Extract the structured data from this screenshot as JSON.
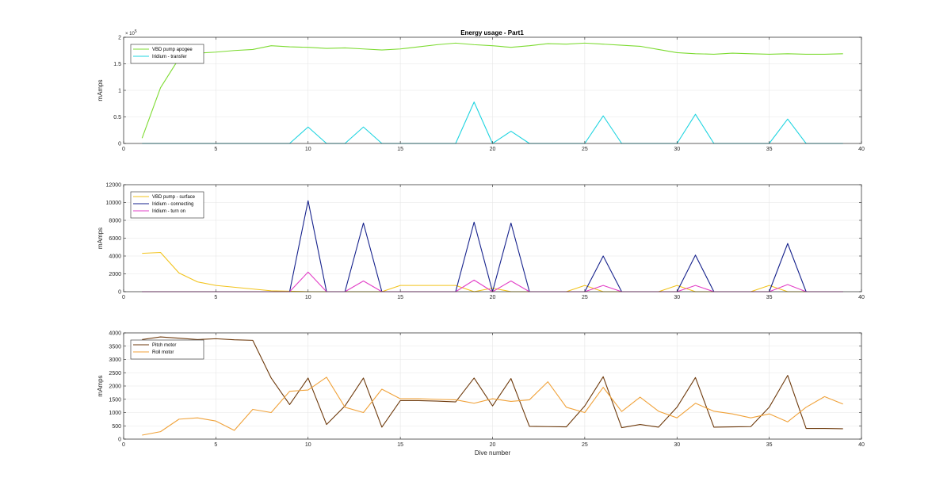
{
  "figure": {
    "title": "Energy usage - Part1"
  },
  "chart_data": [
    {
      "type": "line",
      "ylabel": "mAmps",
      "xlabel": "",
      "xlim": [
        0,
        40
      ],
      "ylim": [
        0,
        200000
      ],
      "xticks": [
        0,
        5,
        10,
        15,
        20,
        25,
        30,
        35,
        40
      ],
      "yticks": [
        0,
        50000,
        100000,
        150000,
        200000
      ],
      "ytick_labels": [
        "0",
        "0.5",
        "1",
        "1.5",
        "2"
      ],
      "y_exponent": "× 10^5",
      "exponent_base": "× 10",
      "exponent_power": "5",
      "grid": true,
      "legend": "top-left",
      "series": [
        {
          "name": "VBD pump apogee",
          "color": "#7ddb32",
          "x": [
            1,
            2,
            3,
            4,
            5,
            6,
            7,
            8,
            9,
            10,
            11,
            12,
            13,
            14,
            15,
            16,
            17,
            18,
            19,
            20,
            21,
            22,
            23,
            24,
            25,
            26,
            27,
            28,
            29,
            30,
            31,
            32,
            33,
            34,
            35,
            36,
            37,
            38,
            39
          ],
          "y": [
            10000,
            105000,
            160000,
            170000,
            172000,
            175000,
            177000,
            184000,
            182000,
            181000,
            179000,
            180000,
            178000,
            176000,
            178000,
            182000,
            186000,
            189000,
            186000,
            184000,
            181000,
            184000,
            188000,
            187000,
            189000,
            187000,
            185000,
            183000,
            177000,
            171000,
            169000,
            168000,
            170000,
            169000,
            168000,
            169000,
            168000,
            168000,
            169000
          ]
        },
        {
          "name": "Iridium - transfer",
          "color": "#1fd4e0",
          "x": [
            1,
            2,
            3,
            4,
            5,
            6,
            7,
            8,
            9,
            10,
            11,
            12,
            13,
            14,
            15,
            16,
            17,
            18,
            19,
            20,
            21,
            22,
            23,
            24,
            25,
            26,
            27,
            28,
            29,
            30,
            31,
            32,
            33,
            34,
            35,
            36,
            37,
            38,
            39
          ],
          "y": [
            0,
            0,
            0,
            0,
            0,
            0,
            0,
            0,
            0,
            31000,
            0,
            0,
            31000,
            0,
            0,
            0,
            0,
            0,
            78000,
            0,
            23000,
            0,
            0,
            0,
            0,
            52000,
            0,
            0,
            0,
            0,
            55000,
            0,
            0,
            0,
            0,
            46000,
            0,
            0,
            0
          ]
        }
      ]
    },
    {
      "type": "line",
      "ylabel": "mAmps",
      "xlabel": "",
      "xlim": [
        0,
        40
      ],
      "ylim": [
        0,
        12000
      ],
      "xticks": [
        0,
        5,
        10,
        15,
        20,
        25,
        30,
        35,
        40
      ],
      "yticks": [
        0,
        2000,
        4000,
        6000,
        8000,
        10000,
        12000
      ],
      "ytick_labels": [
        "0",
        "2000",
        "4000",
        "6000",
        "8000",
        "10000",
        "12000"
      ],
      "grid": true,
      "legend": "top-left",
      "series": [
        {
          "name": "VBD pump - surface",
          "color": "#f2c31b",
          "x": [
            1,
            2,
            3,
            4,
            5,
            6,
            7,
            8,
            9,
            10,
            11,
            12,
            13,
            14,
            15,
            16,
            17,
            18,
            19,
            20,
            21,
            22,
            23,
            24,
            25,
            26,
            27,
            28,
            29,
            30,
            31,
            32,
            33,
            34,
            35,
            36,
            37,
            38,
            39
          ],
          "y": [
            4300,
            4400,
            2100,
            1100,
            700,
            500,
            300,
            100,
            50,
            0,
            0,
            0,
            0,
            0,
            700,
            700,
            700,
            700,
            0,
            400,
            0,
            0,
            0,
            0,
            700,
            0,
            0,
            0,
            0,
            700,
            0,
            0,
            0,
            0,
            700,
            0,
            0,
            0,
            0
          ]
        },
        {
          "name": "Iridium - connecting",
          "color": "#16228c",
          "x": [
            1,
            2,
            3,
            4,
            5,
            6,
            7,
            8,
            9,
            10,
            11,
            12,
            13,
            14,
            15,
            16,
            17,
            18,
            19,
            20,
            21,
            22,
            23,
            24,
            25,
            26,
            27,
            28,
            29,
            30,
            31,
            32,
            33,
            34,
            35,
            36,
            37,
            38,
            39
          ],
          "y": [
            0,
            0,
            0,
            0,
            0,
            0,
            0,
            0,
            0,
            10200,
            0,
            0,
            7700,
            0,
            0,
            0,
            0,
            0,
            7800,
            0,
            7700,
            0,
            0,
            0,
            0,
            4000,
            0,
            0,
            0,
            0,
            4100,
            0,
            0,
            0,
            0,
            5400,
            0,
            0,
            0
          ]
        },
        {
          "name": "Iridium - turn on",
          "color": "#e23fc7",
          "x": [
            1,
            2,
            3,
            4,
            5,
            6,
            7,
            8,
            9,
            10,
            11,
            12,
            13,
            14,
            15,
            16,
            17,
            18,
            19,
            20,
            21,
            22,
            23,
            24,
            25,
            26,
            27,
            28,
            29,
            30,
            31,
            32,
            33,
            34,
            35,
            36,
            37,
            38,
            39
          ],
          "y": [
            0,
            0,
            0,
            0,
            0,
            0,
            0,
            0,
            0,
            2200,
            0,
            0,
            1200,
            0,
            0,
            0,
            0,
            0,
            1300,
            0,
            1200,
            0,
            0,
            0,
            0,
            700,
            0,
            0,
            0,
            0,
            700,
            0,
            0,
            0,
            0,
            800,
            0,
            0,
            0
          ]
        }
      ]
    },
    {
      "type": "line",
      "ylabel": "mAmps",
      "xlabel": "Dive number",
      "xlim": [
        0,
        40
      ],
      "ylim": [
        0,
        4000
      ],
      "xticks": [
        0,
        5,
        10,
        15,
        20,
        25,
        30,
        35,
        40
      ],
      "yticks": [
        0,
        500,
        1000,
        1500,
        2000,
        2500,
        3000,
        3500,
        4000
      ],
      "ytick_labels": [
        "0",
        "500",
        "1000",
        "1500",
        "2000",
        "2500",
        "3000",
        "3500",
        "4000"
      ],
      "grid": true,
      "legend": "top-left",
      "series": [
        {
          "name": "Pitch motor",
          "color": "#6e3a0c",
          "x": [
            1,
            2,
            3,
            4,
            5,
            6,
            7,
            8,
            9,
            10,
            11,
            12,
            13,
            14,
            15,
            16,
            17,
            18,
            19,
            20,
            21,
            22,
            23,
            24,
            25,
            26,
            27,
            28,
            29,
            30,
            31,
            32,
            33,
            34,
            35,
            36,
            37,
            38,
            39
          ],
          "y": [
            3750,
            3850,
            3800,
            3750,
            3780,
            3740,
            3720,
            2300,
            1300,
            2300,
            550,
            1250,
            2300,
            450,
            1450,
            1450,
            1430,
            1400,
            2300,
            1250,
            2280,
            480,
            470,
            460,
            1250,
            2350,
            430,
            550,
            450,
            1200,
            2320,
            450,
            460,
            470,
            1200,
            2400,
            400,
            400,
            390
          ]
        },
        {
          "name": "Roll motor",
          "color": "#f0a23a",
          "x": [
            1,
            2,
            3,
            4,
            5,
            6,
            7,
            8,
            9,
            10,
            11,
            12,
            13,
            14,
            15,
            16,
            17,
            18,
            19,
            20,
            21,
            22,
            23,
            24,
            25,
            26,
            27,
            28,
            29,
            30,
            31,
            32,
            33,
            34,
            35,
            36,
            37,
            38,
            39
          ],
          "y": [
            150,
            280,
            750,
            800,
            680,
            330,
            1120,
            1000,
            1800,
            1850,
            2330,
            1200,
            1000,
            1880,
            1520,
            1520,
            1500,
            1480,
            1350,
            1520,
            1420,
            1480,
            2160,
            1200,
            1000,
            1950,
            1040,
            1580,
            1050,
            800,
            1350,
            1050,
            950,
            800,
            950,
            650,
            1200,
            1600,
            1320
          ]
        }
      ]
    }
  ]
}
